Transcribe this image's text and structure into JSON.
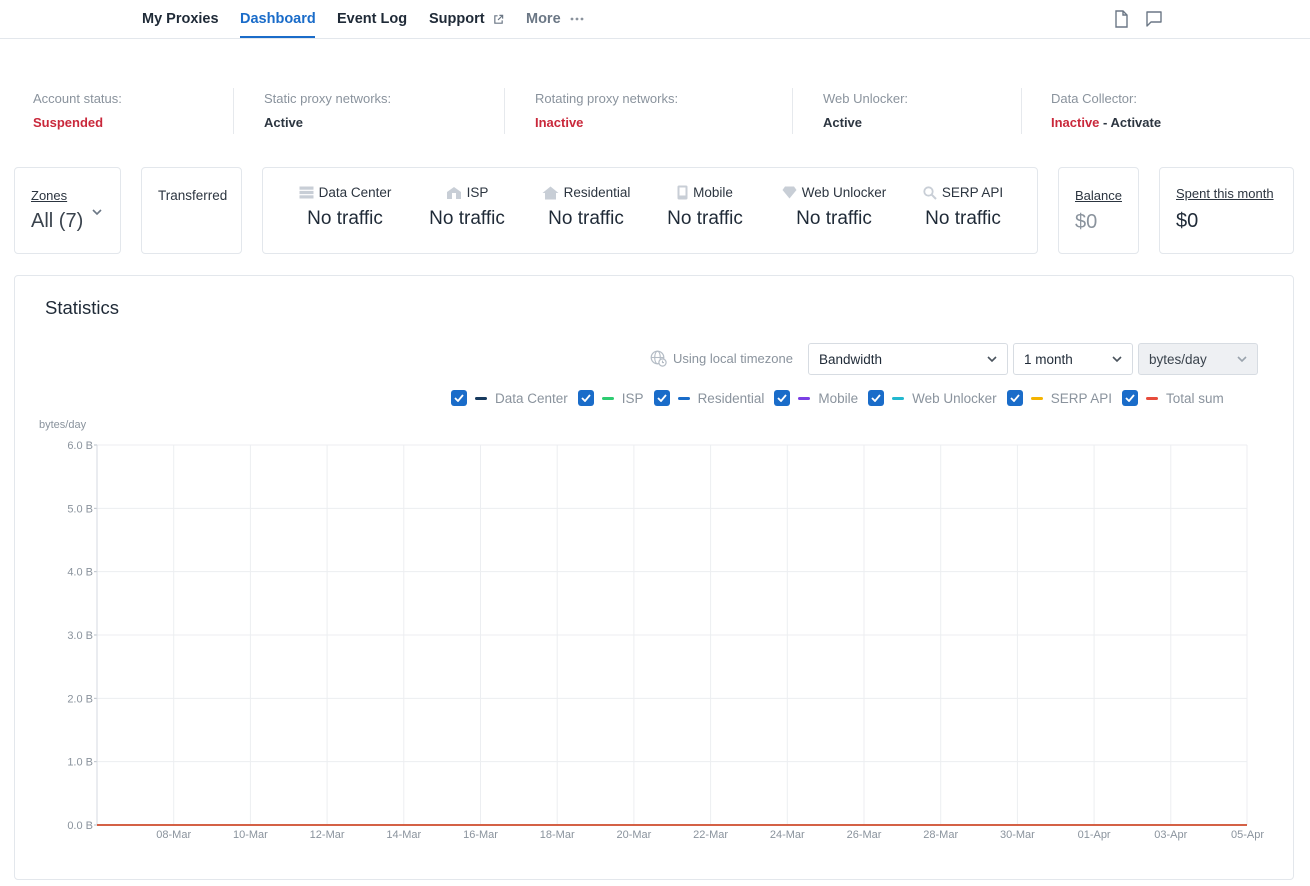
{
  "nav": {
    "items": [
      "My Proxies",
      "Dashboard",
      "Event Log",
      "Support",
      "More"
    ],
    "active": "Dashboard",
    "accent_color": "#1a6cc9",
    "icons": [
      "external-link-icon",
      "ellipsis-icon",
      "document-icon",
      "chat-icon"
    ]
  },
  "status": [
    {
      "label": "Account status:",
      "value": "Suspended",
      "color": "red"
    },
    {
      "label": "Static proxy networks:",
      "value": "Active",
      "color": "dark"
    },
    {
      "label": "Rotating proxy networks:",
      "value": "Inactive",
      "color": "red"
    },
    {
      "label": "Web Unlocker:",
      "value": "Active",
      "color": "dark"
    },
    {
      "label": "Data Collector:",
      "value": "Inactive",
      "color": "red",
      "action": " - Activate"
    }
  ],
  "zones": {
    "label": "Zones",
    "value": "All (7)"
  },
  "transferred": {
    "label": "Transferred"
  },
  "traffic": [
    {
      "name": "Data Center",
      "icon": "server-icon",
      "value": "No traffic"
    },
    {
      "name": "ISP",
      "icon": "building-icon",
      "value": "No traffic"
    },
    {
      "name": "Residential",
      "icon": "house-icon",
      "value": "No traffic"
    },
    {
      "name": "Mobile",
      "icon": "mobile-icon",
      "value": "No traffic"
    },
    {
      "name": "Web Unlocker",
      "icon": "diamond-icon",
      "value": "No traffic"
    },
    {
      "name": "SERP API",
      "icon": "search-icon",
      "value": "No traffic"
    }
  ],
  "balance": {
    "label": "Balance",
    "value": "$0"
  },
  "spent": {
    "label": "Spent this month",
    "value": "$0"
  },
  "statistics": {
    "title": "Statistics",
    "timezone": "Using local timezone",
    "metric": "Bandwidth",
    "period": "1 month",
    "unit": "bytes/day"
  },
  "chart_data": {
    "type": "line",
    "ylabel": "bytes/day",
    "ylim": [
      0,
      6
    ],
    "y_ticks": [
      "0.0 B",
      "1.0 B",
      "2.0 B",
      "3.0 B",
      "4.0 B",
      "5.0 B",
      "6.0 B"
    ],
    "x_ticks": [
      "08-Mar",
      "10-Mar",
      "12-Mar",
      "14-Mar",
      "16-Mar",
      "18-Mar",
      "20-Mar",
      "22-Mar",
      "24-Mar",
      "26-Mar",
      "28-Mar",
      "30-Mar",
      "01-Apr",
      "03-Apr",
      "05-Apr"
    ],
    "grid": true,
    "legend_position": "top-right",
    "series": [
      {
        "name": "Data Center",
        "color": "#173a5e",
        "values": [
          0,
          0,
          0,
          0,
          0,
          0,
          0,
          0,
          0,
          0,
          0,
          0,
          0,
          0,
          0
        ]
      },
      {
        "name": "ISP",
        "color": "#2ecc71",
        "values": [
          0,
          0,
          0,
          0,
          0,
          0,
          0,
          0,
          0,
          0,
          0,
          0,
          0,
          0,
          0
        ]
      },
      {
        "name": "Residential",
        "color": "#1a6cc9",
        "values": [
          0,
          0,
          0,
          0,
          0,
          0,
          0,
          0,
          0,
          0,
          0,
          0,
          0,
          0,
          0
        ]
      },
      {
        "name": "Mobile",
        "color": "#7b3fe4",
        "values": [
          0,
          0,
          0,
          0,
          0,
          0,
          0,
          0,
          0,
          0,
          0,
          0,
          0,
          0,
          0
        ]
      },
      {
        "name": "Web Unlocker",
        "color": "#22b8cf",
        "values": [
          0,
          0,
          0,
          0,
          0,
          0,
          0,
          0,
          0,
          0,
          0,
          0,
          0,
          0,
          0
        ]
      },
      {
        "name": "SERP API",
        "color": "#f5b400",
        "values": [
          0,
          0,
          0,
          0,
          0,
          0,
          0,
          0,
          0,
          0,
          0,
          0,
          0,
          0,
          0
        ]
      },
      {
        "name": "Total sum",
        "color": "#e74c3c",
        "values": [
          0,
          0,
          0,
          0,
          0,
          0,
          0,
          0,
          0,
          0,
          0,
          0,
          0,
          0,
          0
        ]
      }
    ]
  }
}
